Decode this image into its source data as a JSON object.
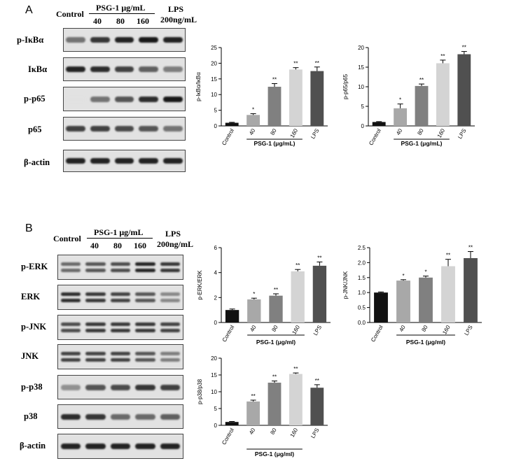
{
  "panels": [
    {
      "letter": "A",
      "header": {
        "control": "Control",
        "psg": "PSG-1 μg/mL",
        "doses": [
          "40",
          "80",
          "160"
        ],
        "lps": "LPS",
        "lps_dose": "200ng/mL"
      },
      "blots": [
        {
          "label": "p-IκBα",
          "intensities": [
            0.55,
            0.85,
            0.95,
            1.0,
            0.95
          ]
        },
        {
          "label": "IκBα",
          "intensities": [
            0.95,
            0.9,
            0.8,
            0.65,
            0.5
          ]
        },
        {
          "label": "p-p65",
          "intensities": [
            0.0,
            0.55,
            0.7,
            0.9,
            1.0
          ]
        },
        {
          "label": "p65",
          "intensities": [
            0.8,
            0.8,
            0.75,
            0.7,
            0.55
          ]
        },
        {
          "label": "β-actin",
          "intensities": [
            0.95,
            0.95,
            0.95,
            0.95,
            0.95
          ]
        }
      ]
    },
    {
      "letter": "B",
      "header": {
        "control": "Control",
        "psg": "PSG-1 μg/mL",
        "doses": [
          "40",
          "80",
          "160"
        ],
        "lps": "LPS",
        "lps_dose": "200ng/mL"
      },
      "blots": [
        {
          "label": "p-ERK",
          "intensities": [
            0.6,
            0.7,
            0.75,
            0.95,
            0.85
          ],
          "double": true
        },
        {
          "label": "ERK",
          "intensities": [
            0.9,
            0.85,
            0.8,
            0.7,
            0.45
          ],
          "double": true
        },
        {
          "label": "p-JNK",
          "intensities": [
            0.75,
            0.85,
            0.85,
            0.85,
            0.8
          ],
          "double": true
        },
        {
          "label": "JNK",
          "intensities": [
            0.8,
            0.8,
            0.8,
            0.7,
            0.5
          ],
          "double": true
        },
        {
          "label": "p-p38",
          "intensities": [
            0.4,
            0.7,
            0.75,
            0.85,
            0.8
          ]
        },
        {
          "label": "p38",
          "intensities": [
            0.9,
            0.85,
            0.6,
            0.6,
            0.65
          ]
        },
        {
          "label": "β-actin",
          "intensities": [
            0.95,
            0.95,
            0.95,
            0.95,
            0.95
          ]
        }
      ]
    }
  ],
  "chart_data": [
    {
      "type": "bar",
      "ylabel": "p-IκBα/IκBα",
      "xlabel": "PSG-1 (μg/mL)",
      "categories": [
        "Control",
        "40",
        "80",
        "160",
        "LPS"
      ],
      "values": [
        1.0,
        3.5,
        12.5,
        18.0,
        17.5
      ],
      "errors": [
        0.15,
        0.4,
        1.0,
        0.6,
        1.3
      ],
      "significance": [
        "",
        "*",
        "**",
        "**",
        "**"
      ],
      "ylim": [
        0,
        25
      ],
      "yticks": [
        "0",
        "5",
        "10",
        "15",
        "20",
        "25"
      ],
      "colors": [
        "#111111",
        "#a8a8a8",
        "#808080",
        "#d4d4d4",
        "#505050"
      ]
    },
    {
      "type": "bar",
      "ylabel": "p-p65/p65",
      "xlabel": "PSG-1 (μg/mL)",
      "categories": [
        "Control",
        "40",
        "80",
        "160",
        "LPS"
      ],
      "values": [
        1.0,
        4.5,
        10.2,
        16.0,
        18.3
      ],
      "errors": [
        0.1,
        1.1,
        0.5,
        0.8,
        0.7
      ],
      "significance": [
        "",
        "*",
        "**",
        "**",
        "**"
      ],
      "ylim": [
        0,
        20
      ],
      "yticks": [
        "0",
        "5",
        "10",
        "15",
        "20"
      ],
      "colors": [
        "#111111",
        "#a8a8a8",
        "#808080",
        "#d4d4d4",
        "#505050"
      ]
    },
    {
      "type": "bar",
      "ylabel": "p-ERK/ERK",
      "xlabel": "PSG-1 (μg/ml)",
      "categories": [
        "Control",
        "40",
        "80",
        "160",
        "LPS"
      ],
      "values": [
        1.0,
        1.85,
        2.15,
        4.1,
        4.55
      ],
      "errors": [
        0.08,
        0.1,
        0.15,
        0.15,
        0.3
      ],
      "significance": [
        "",
        "*",
        "**",
        "**",
        "**"
      ],
      "ylim": [
        0,
        6
      ],
      "yticks": [
        "0",
        "2",
        "4",
        "6"
      ],
      "colors": [
        "#111111",
        "#a8a8a8",
        "#808080",
        "#d4d4d4",
        "#505050"
      ]
    },
    {
      "type": "bar",
      "ylabel": "p-JNK/JNK",
      "xlabel": "PSG-1 (μg/ml)",
      "categories": [
        "Control",
        "40",
        "80",
        "160",
        "LPS"
      ],
      "values": [
        1.0,
        1.4,
        1.5,
        1.88,
        2.15
      ],
      "errors": [
        0.02,
        0.03,
        0.05,
        0.23,
        0.22
      ],
      "significance": [
        "",
        "*",
        "*",
        "**",
        "**"
      ],
      "ylim": [
        0,
        2.5
      ],
      "yticks": [
        "0.0",
        "0.5",
        "1.0",
        "1.5",
        "2.0",
        "2.5"
      ],
      "colors": [
        "#111111",
        "#a8a8a8",
        "#808080",
        "#d4d4d4",
        "#505050"
      ]
    },
    {
      "type": "bar",
      "ylabel": "p-p38/p38",
      "xlabel": "PSG-1 (μg/ml)",
      "categories": [
        "Control",
        "40",
        "80",
        "160",
        "LPS"
      ],
      "values": [
        1.0,
        7.1,
        12.7,
        15.3,
        11.2
      ],
      "errors": [
        0.15,
        0.4,
        0.5,
        0.3,
        0.9
      ],
      "significance": [
        "",
        "**",
        "**",
        "**",
        "**"
      ],
      "ylim": [
        0,
        20
      ],
      "yticks": [
        "0",
        "5",
        "10",
        "15",
        "20"
      ],
      "colors": [
        "#111111",
        "#a8a8a8",
        "#808080",
        "#d4d4d4",
        "#505050"
      ]
    }
  ]
}
